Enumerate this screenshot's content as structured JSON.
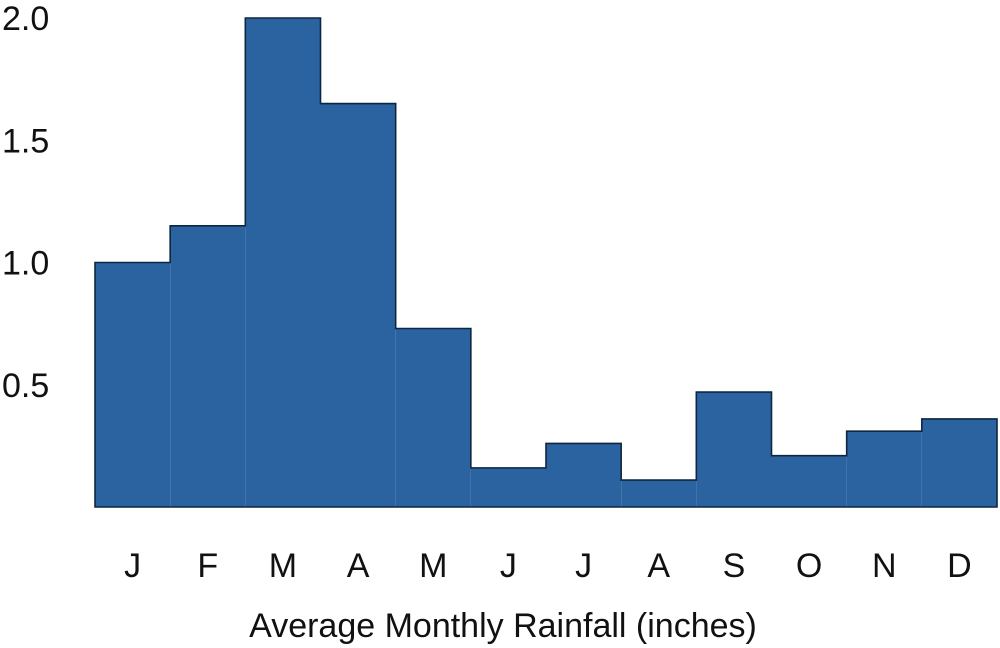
{
  "chart_data": {
    "type": "bar",
    "title": "",
    "xlabel": "Average Monthly Rainfall (inches)",
    "ylabel": "",
    "categories": [
      "J",
      "F",
      "M",
      "A",
      "M",
      "J",
      "J",
      "A",
      "S",
      "O",
      "N",
      "D"
    ],
    "values": [
      1.0,
      1.15,
      2.0,
      1.65,
      0.73,
      0.16,
      0.26,
      0.11,
      0.47,
      0.21,
      0.31,
      0.36
    ],
    "ylim": [
      0.0,
      2.0
    ],
    "yticks": [
      0.5,
      1.0,
      1.5,
      2.0
    ],
    "ytick_labels": [
      "0.5",
      "1.0",
      "1.5",
      "2.0"
    ],
    "grid": false,
    "legend": "none",
    "colors": {
      "fill": "#2a63a0",
      "stroke": "#0e2740"
    }
  }
}
